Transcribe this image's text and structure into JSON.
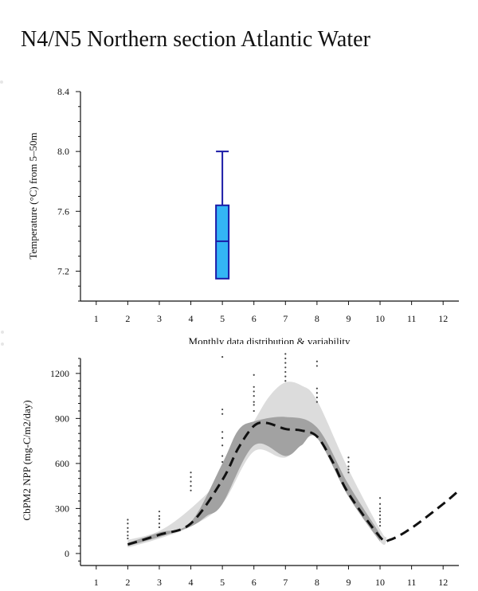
{
  "page": {
    "title": "N4/N5 Northern section Atlantic Water"
  },
  "chart_data": [
    {
      "type": "box",
      "ylabel": "Temperature (°C) from 5–50m",
      "xlabel": "Monthly data distribution & variability",
      "categories": [
        "1",
        "2",
        "3",
        "4",
        "5",
        "6",
        "7",
        "8",
        "9",
        "10",
        "11",
        "12"
      ],
      "yticks": [
        "7.2",
        "7.6",
        "8.0",
        "8.4"
      ],
      "ylim": [
        7.0,
        8.4
      ],
      "xlim": [
        0.5,
        12.5
      ],
      "boxes": [
        {
          "month": 5,
          "min": 7.15,
          "q1": 7.15,
          "median": 7.4,
          "q3": 7.64,
          "max": 8.0
        }
      ],
      "colors": {
        "box_fill": "#33b5f5",
        "box_stroke": "#1a1aa6"
      }
    },
    {
      "type": "area",
      "ylabel": "CbPM2 NPP (mg-C/m2/day)",
      "categories": [
        "1",
        "2",
        "3",
        "4",
        "5",
        "6",
        "7",
        "8",
        "9",
        "10",
        "11",
        "12"
      ],
      "yticks": [
        "0",
        "300",
        "600",
        "900",
        "1200"
      ],
      "ylim": [
        -80,
        1300
      ],
      "xlim": [
        0.5,
        12.5
      ],
      "series": [
        {
          "kind": "outer-envelope",
          "upper": [
            [
              2,
              90
            ],
            [
              3,
              150
            ],
            [
              4,
              300
            ],
            [
              5,
              520
            ],
            [
              6,
              880
            ],
            [
              6.5,
              1050
            ],
            [
              7,
              1140
            ],
            [
              7.5,
              1120
            ],
            [
              8,
              1020
            ],
            [
              9,
              560
            ],
            [
              10,
              160
            ],
            [
              10.2,
              110
            ]
          ],
          "lower": [
            [
              2,
              40
            ],
            [
              3,
              100
            ],
            [
              4,
              180
            ],
            [
              5,
              330
            ],
            [
              6,
              680
            ],
            [
              7,
              640
            ],
            [
              8,
              780
            ],
            [
              9,
              380
            ],
            [
              10,
              80
            ],
            [
              10.2,
              80
            ]
          ]
        },
        {
          "kind": "inner-envelope",
          "upper": [
            [
              2,
              70
            ],
            [
              3,
              140
            ],
            [
              4,
              210
            ],
            [
              5,
              600
            ],
            [
              5.5,
              820
            ],
            [
              6,
              880
            ],
            [
              7,
              910
            ],
            [
              8,
              840
            ],
            [
              9,
              460
            ],
            [
              10,
              130
            ]
          ],
          "lower": [
            [
              2,
              50
            ],
            [
              3,
              110
            ],
            [
              4,
              180
            ],
            [
              4.5,
              250
            ],
            [
              5,
              330
            ],
            [
              6,
              720
            ],
            [
              7,
              650
            ],
            [
              7.5,
              720
            ],
            [
              8,
              770
            ],
            [
              9,
              380
            ],
            [
              10,
              80
            ]
          ]
        },
        {
          "kind": "climatology",
          "points": [
            [
              2,
              60
            ],
            [
              3,
              125
            ],
            [
              4,
              200
            ],
            [
              5,
              490
            ],
            [
              5.5,
              700
            ],
            [
              6,
              850
            ],
            [
              6.4,
              870
            ],
            [
              7,
              830
            ],
            [
              7.5,
              820
            ],
            [
              8,
              780
            ],
            [
              8.5,
              610
            ],
            [
              9,
              400
            ],
            [
              10,
              110
            ],
            [
              10.3,
              90
            ],
            [
              11,
              170
            ],
            [
              12,
              330
            ],
            [
              12.5,
              420
            ]
          ]
        }
      ],
      "scatter": [
        [
          2,
          225
        ],
        [
          2,
          200
        ],
        [
          2,
          170
        ],
        [
          2,
          145
        ],
        [
          2,
          120
        ],
        [
          2,
          100
        ],
        [
          3,
          280
        ],
        [
          3,
          250
        ],
        [
          3,
          230
        ],
        [
          3,
          200
        ],
        [
          3,
          175
        ],
        [
          4,
          540
        ],
        [
          4,
          510
        ],
        [
          4,
          480
        ],
        [
          4,
          450
        ],
        [
          4,
          420
        ],
        [
          5,
          1310
        ],
        [
          5,
          960
        ],
        [
          5,
          930
        ],
        [
          5,
          810
        ],
        [
          5,
          770
        ],
        [
          5,
          720
        ],
        [
          5,
          650
        ],
        [
          5,
          610
        ],
        [
          6,
          1190
        ],
        [
          6,
          1110
        ],
        [
          6,
          1080
        ],
        [
          6,
          1050
        ],
        [
          6,
          1010
        ],
        [
          6,
          990
        ],
        [
          6,
          950
        ],
        [
          7,
          1330
        ],
        [
          7,
          1300
        ],
        [
          7,
          1270
        ],
        [
          7,
          1240
        ],
        [
          7,
          1210
        ],
        [
          7,
          1180
        ],
        [
          7,
          1150
        ],
        [
          8,
          1280
        ],
        [
          8,
          1250
        ],
        [
          8,
          1100
        ],
        [
          8,
          1070
        ],
        [
          8,
          1040
        ],
        [
          8,
          1010
        ],
        [
          9,
          640
        ],
        [
          9,
          610
        ],
        [
          9,
          580
        ],
        [
          9,
          560
        ],
        [
          9,
          540
        ],
        [
          10,
          370
        ],
        [
          10,
          330
        ],
        [
          10,
          300
        ],
        [
          10,
          280
        ],
        [
          10,
          255
        ],
        [
          10,
          230
        ],
        [
          10,
          210
        ],
        [
          10,
          185
        ]
      ],
      "colors": {
        "outer": "#dcdcdc",
        "inner": "#a2a2a2",
        "line": "#111111",
        "dots": "#444444"
      }
    }
  ]
}
